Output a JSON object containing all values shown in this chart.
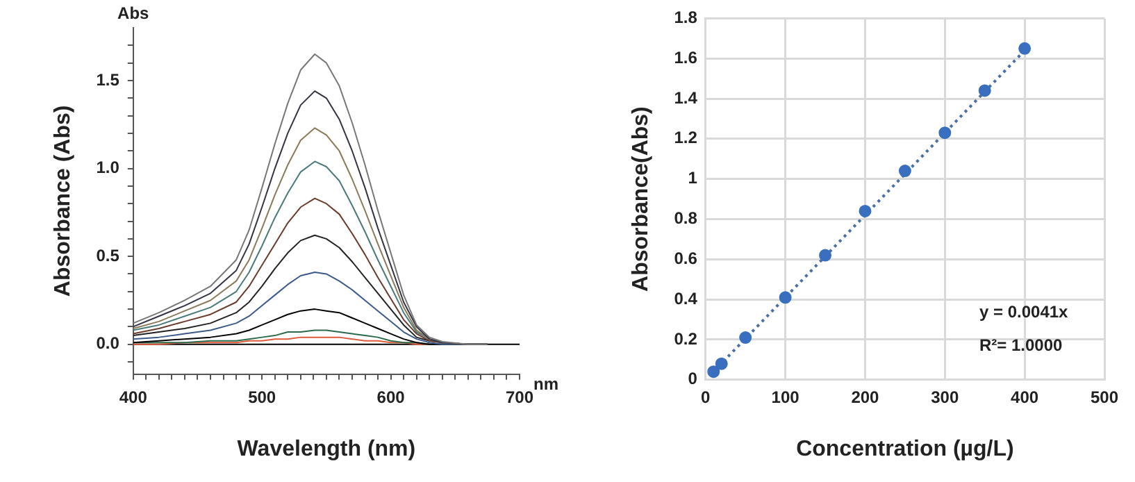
{
  "chart_data": [
    {
      "type": "line",
      "xlabel": "Wavelength (nm)",
      "ylabel": "Absorbance (Abs)",
      "annotations": [
        "Abs",
        "nm"
      ],
      "xlim": [
        400,
        700
      ],
      "ylim": [
        -0.17,
        1.8
      ],
      "xticks": [
        400,
        {
          "value": 410,
          "label": null
        },
        {
          "value": 420,
          "label": null
        },
        {
          "value": 430,
          "label": null
        },
        {
          "value": 440,
          "label": null
        },
        {
          "value": 450,
          "label": null
        },
        {
          "value": 460,
          "label": null
        },
        {
          "value": 470,
          "label": null
        },
        {
          "value": 480,
          "label": null
        },
        {
          "value": 490,
          "label": null
        },
        500,
        {
          "value": 510,
          "label": null
        },
        {
          "value": 520,
          "label": null
        },
        {
          "value": 530,
          "label": null
        },
        {
          "value": 540,
          "label": null
        },
        {
          "value": 550,
          "label": null
        },
        {
          "value": 560,
          "label": null
        },
        {
          "value": 570,
          "label": null
        },
        {
          "value": 580,
          "label": null
        },
        {
          "value": 590,
          "label": null
        },
        600,
        {
          "value": 610,
          "label": null
        },
        {
          "value": 620,
          "label": null
        },
        {
          "value": 630,
          "label": null
        },
        {
          "value": 640,
          "label": null
        },
        {
          "value": 650,
          "label": null
        },
        {
          "value": 660,
          "label": null
        },
        {
          "value": 670,
          "label": null
        },
        {
          "value": 680,
          "label": null
        },
        {
          "value": 690,
          "label": null
        },
        700
      ],
      "yticks": [
        {
          "value": -0.1,
          "label": null
        },
        {
          "value": 0,
          "label": "0.0"
        },
        {
          "value": 0.1,
          "label": null
        },
        {
          "value": 0.2,
          "label": null
        },
        {
          "value": 0.3,
          "label": null
        },
        {
          "value": 0.4,
          "label": null
        },
        {
          "value": 0.5,
          "label": "0.5"
        },
        {
          "value": 0.6,
          "label": null
        },
        {
          "value": 0.7,
          "label": null
        },
        {
          "value": 0.8,
          "label": null
        },
        {
          "value": 0.9,
          "label": null
        },
        {
          "value": 1,
          "label": "1.0"
        },
        {
          "value": 1.1,
          "label": null
        },
        {
          "value": 1.2,
          "label": null
        },
        {
          "value": 1.3,
          "label": null
        },
        {
          "value": 1.4,
          "label": null
        },
        {
          "value": 1.5,
          "label": "1.5"
        },
        {
          "value": 1.6,
          "label": null
        },
        {
          "value": 1.7,
          "label": null
        }
      ],
      "marker": "none",
      "x": [
        400,
        420,
        440,
        460,
        480,
        490,
        500,
        510,
        520,
        530,
        541,
        550,
        560,
        570,
        580,
        590,
        600,
        610,
        620,
        630,
        640,
        660,
        675
      ],
      "series": [
        {
          "color": "#777777",
          "values": [
            0.12,
            0.18,
            0.25,
            0.33,
            0.48,
            0.65,
            0.89,
            1.14,
            1.37,
            1.56,
            1.65,
            1.6,
            1.47,
            1.26,
            1.02,
            0.76,
            0.52,
            0.28,
            0.11,
            0.04,
            0.015,
            0,
            0
          ]
        },
        {
          "color": "#333344",
          "values": [
            0.1,
            0.16,
            0.22,
            0.29,
            0.42,
            0.57,
            0.78,
            1.0,
            1.2,
            1.36,
            1.44,
            1.4,
            1.28,
            1.1,
            0.89,
            0.66,
            0.45,
            0.24,
            0.1,
            0.03,
            0.01,
            0,
            0
          ]
        },
        {
          "color": "#8a7a5a",
          "values": [
            0.09,
            0.13,
            0.19,
            0.25,
            0.36,
            0.48,
            0.66,
            0.85,
            1.02,
            1.16,
            1.23,
            1.19,
            1.1,
            0.94,
            0.76,
            0.57,
            0.39,
            0.21,
            0.08,
            0.03,
            0.01,
            0,
            0
          ]
        },
        {
          "color": "#4a7a7a",
          "values": [
            0.08,
            0.11,
            0.16,
            0.21,
            0.3,
            0.41,
            0.56,
            0.72,
            0.86,
            0.98,
            1.04,
            1.01,
            0.93,
            0.79,
            0.64,
            0.48,
            0.33,
            0.18,
            0.07,
            0.03,
            0.01,
            0,
            0
          ]
        },
        {
          "color": "#6a3a2a",
          "values": [
            0.06,
            0.09,
            0.13,
            0.17,
            0.24,
            0.33,
            0.45,
            0.57,
            0.69,
            0.78,
            0.83,
            0.8,
            0.74,
            0.63,
            0.51,
            0.38,
            0.26,
            0.14,
            0.06,
            0.02,
            0.01,
            0,
            0
          ]
        },
        {
          "color": "#222222",
          "values": [
            0.05,
            0.07,
            0.09,
            0.12,
            0.18,
            0.24,
            0.33,
            0.43,
            0.52,
            0.59,
            0.62,
            0.6,
            0.55,
            0.47,
            0.38,
            0.29,
            0.2,
            0.11,
            0.04,
            0.02,
            0.01,
            0,
            0
          ]
        },
        {
          "color": "#3a5a8a",
          "values": [
            0.03,
            0.04,
            0.06,
            0.08,
            0.12,
            0.16,
            0.22,
            0.28,
            0.34,
            0.39,
            0.41,
            0.4,
            0.36,
            0.31,
            0.25,
            0.19,
            0.13,
            0.07,
            0.03,
            0.01,
            0,
            0,
            0
          ]
        },
        {
          "color": "#000000",
          "values": [
            0.01,
            0.02,
            0.03,
            0.04,
            0.06,
            0.08,
            0.11,
            0.14,
            0.17,
            0.19,
            0.2,
            0.19,
            0.18,
            0.15,
            0.12,
            0.09,
            0.06,
            0.03,
            0.01,
            0,
            0,
            0,
            0
          ]
        },
        {
          "color": "#2a6a4a",
          "values": [
            0.01,
            0.01,
            0.01,
            0.02,
            0.02,
            0.03,
            0.04,
            0.05,
            0.07,
            0.07,
            0.08,
            0.08,
            0.07,
            0.06,
            0.05,
            0.04,
            0.02,
            0.01,
            0.01,
            0,
            0,
            0,
            0
          ]
        },
        {
          "color": "#e05a3a",
          "values": [
            0,
            0,
            0.01,
            0.01,
            0.01,
            0.02,
            0.02,
            0.03,
            0.03,
            0.04,
            0.04,
            0.04,
            0.04,
            0.03,
            0.02,
            0.02,
            0.01,
            0.01,
            0,
            0,
            0,
            null,
            null
          ]
        },
        {
          "color": "#000000",
          "x": [
            400,
            700
          ],
          "values": [
            0,
            0
          ]
        }
      ]
    },
    {
      "type": "scatter",
      "xlabel": "Concentration (µg/L)",
      "ylabel": "Absorbance(Abs)",
      "annotations": [
        "y = 0.0041x",
        "R²= 1.0000"
      ],
      "xlim": [
        0,
        500
      ],
      "ylim": [
        0,
        1.8
      ],
      "xticks": [
        0,
        100,
        200,
        300,
        400,
        500
      ],
      "yticks": [
        0,
        0.2,
        0.4,
        0.6,
        0.8,
        1,
        1.2,
        1.4,
        1.6,
        1.8
      ],
      "grid": true,
      "marker": "circle",
      "series": [
        {
          "color": "#3a6fbf",
          "x": [
            10,
            20,
            50,
            100,
            150,
            200,
            250,
            300,
            350,
            400
          ],
          "values": [
            0.04,
            0.08,
            0.21,
            0.41,
            0.62,
            0.84,
            1.04,
            1.23,
            1.44,
            1.65
          ]
        },
        {
          "type": "line",
          "color": "#4a6fa5",
          "line_style": "dotted",
          "marker": "none",
          "x": [
            10,
            400
          ],
          "values": [
            0.041,
            1.64
          ]
        }
      ]
    }
  ]
}
